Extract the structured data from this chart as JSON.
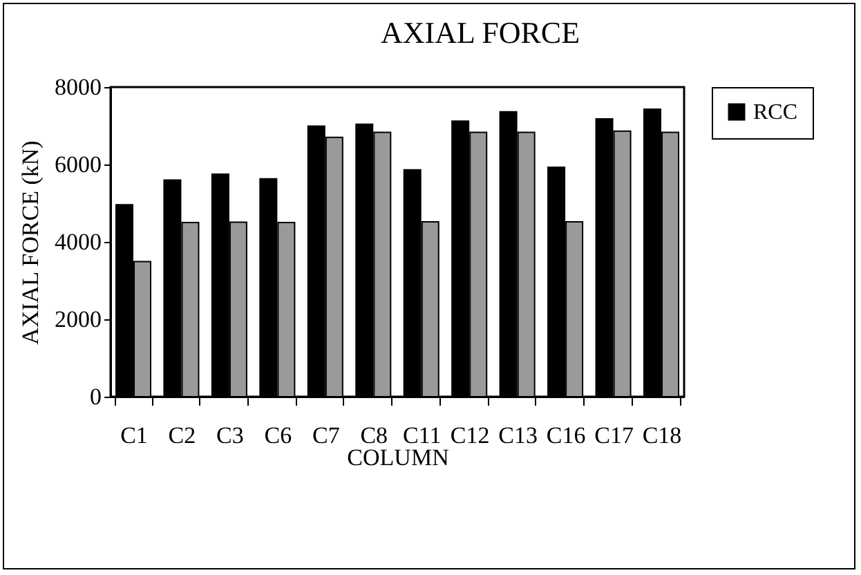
{
  "chart_data": {
    "type": "bar",
    "title": "AXIAL FORCE",
    "xlabel": "COLUMN",
    "ylabel": "AXIAL FORCE (kN)",
    "categories": [
      "C1",
      "C2",
      "C3",
      "C6",
      "C7",
      "C8",
      "C11",
      "C12",
      "C13",
      "C16",
      "C17",
      "C18"
    ],
    "series": [
      {
        "name": "RCC",
        "color": "#000000",
        "values": [
          4960,
          5600,
          5750,
          5630,
          6990,
          7040,
          5860,
          7120,
          7360,
          5930,
          7180,
          7430
        ]
      },
      {
        "color": "#9a9a9a",
        "values": [
          3490,
          4500,
          4510,
          4500,
          6700,
          6830,
          4520,
          6830,
          6830,
          4520,
          6860,
          6830
        ]
      }
    ],
    "ylim": [
      0,
      8000
    ],
    "yticks": [
      0,
      2000,
      4000,
      6000,
      8000
    ],
    "grid": false,
    "legend": "right"
  }
}
